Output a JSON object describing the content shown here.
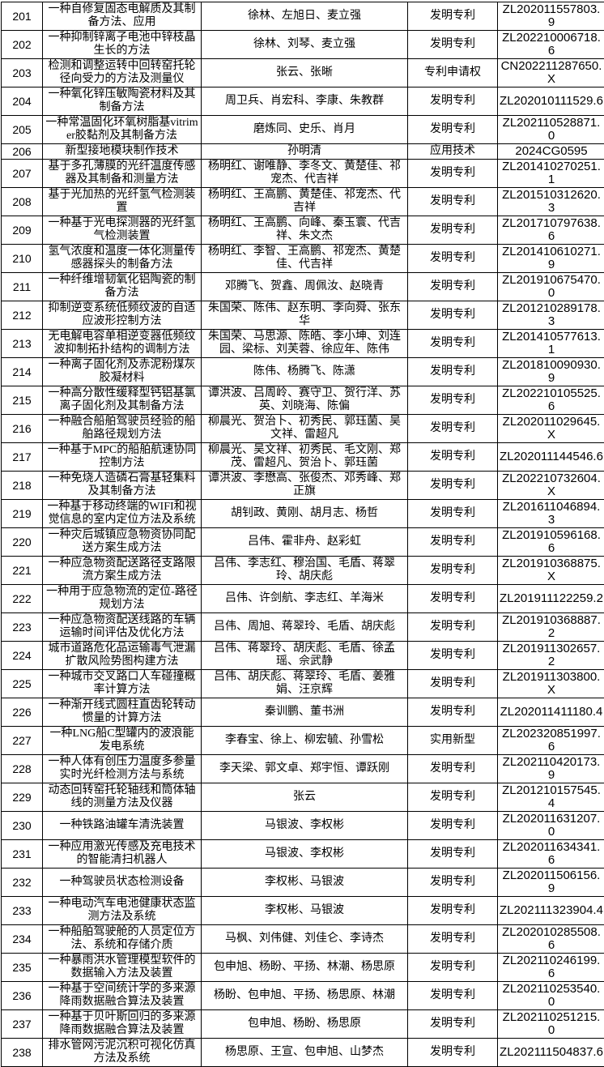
{
  "table": {
    "rows": [
      {
        "no": "201",
        "title": "一种自修复固态电解质及其制备方法、应用",
        "inventors": "徐林、左旭日、麦立强",
        "type": "发明专利",
        "number": "ZL202011557803.9"
      },
      {
        "no": "202",
        "title": "一种抑制锌离子电池中锌枝晶生长的方法",
        "inventors": "徐林、刘琴、麦立强",
        "type": "发明专利",
        "number": "ZL202210006718.6"
      },
      {
        "no": "203",
        "title": "检测和调整运转中回转窑托轮径向受力的方法及测量仪",
        "inventors": "张云、张晰",
        "type": "专利申请权",
        "number": "CN202211287650.X"
      },
      {
        "no": "204",
        "title": "一种氧化锌压敏陶瓷材料及其制备方法",
        "inventors": "周卫兵、肖宏科、李康、朱教群",
        "type": "发明专利",
        "number": "ZL202010111529.6"
      },
      {
        "no": "205",
        "title": "一种常温固化环氧树脂基vitrimer胶黏剂及其制备方法",
        "inventors": "磨炼同、史乐、肖月",
        "type": "发明专利",
        "number": "ZL202110528871.0"
      },
      {
        "no": "206",
        "title": "新型接地模块制作技术",
        "inventors": "孙明清",
        "type": "应用技术",
        "number": "2024CG0595"
      },
      {
        "no": "207",
        "title": "基于多孔薄膜的光纤温度传感器及其制备和测量方法",
        "inventors": "杨明红、谢唯静、李冬文、黄楚佳、祁宠杰、代吉祥",
        "type": "发明专利",
        "number": "ZL201410270251.1"
      },
      {
        "no": "208",
        "title": "基于光加热的光纤氢气检测装置",
        "inventors": "杨明红、王高鹏、黄楚佳、祁宠杰、代吉祥",
        "type": "发明专利",
        "number": "ZL201510312620.3"
      },
      {
        "no": "209",
        "title": "一种基于光电探测器的光纤氢气检测装置",
        "inventors": "杨明红、王高鹏、向峰、秦玉寰、代吉祥、朱文杰",
        "type": "发明专利",
        "number": "ZL201710797638.6"
      },
      {
        "no": "210",
        "title": "氢气浓度和温度一体化测量传感器探头的制备方法",
        "inventors": "杨明红、李智、王高鹏、祁宠杰、黄楚佳、代吉祥",
        "type": "发明专利",
        "number": "ZL201410610271.9"
      },
      {
        "no": "211",
        "title": "一种纤维增韧氧化铝陶瓷的制备方法",
        "inventors": "邓腾飞、贺鑫、周佩汝、赵晓青",
        "type": "发明专利",
        "number": "ZL201910675470.0"
      },
      {
        "no": "212",
        "title": "抑制逆变系统低频纹波的自适应波形控制方法",
        "inventors": "朱国荣、陈伟、赵东明、李向舜、张东华",
        "type": "发明专利",
        "number": "ZL201210289178.3"
      },
      {
        "no": "213",
        "title": "无电解电容单相逆变器低频纹波抑制拓扑结构的调制方法",
        "inventors": "朱国荣、马思源、陈皓、李小坤、刘连园、梁标、刘芙蓉、徐应年、陈伟",
        "type": "发明专利",
        "number": "ZL201410577613.1"
      },
      {
        "no": "214",
        "title": "一种离子固化剂及赤泥粉煤灰胶凝材料",
        "inventors": "陈伟、杨腾飞、陈潇",
        "type": "发明专利",
        "number": "ZL201810090930.9"
      },
      {
        "no": "215",
        "title": "一种高分散性缓释型钙铝基氯离子固化剂及其制备方法",
        "inventors": "谭洪波、吕周岭、赛守卫、贺行洋、苏英、刘晓海、陈偏",
        "type": "发明专利",
        "number": "ZL202210105525.6"
      },
      {
        "no": "216",
        "title": "一种融合船舶驾驶员经验的船舶路径规划方法",
        "inventors": "柳晨光、贺治卜、初秀民、郭珏菌、吴文祥、雷超凡",
        "type": "发明专利",
        "number": "ZL202011029645.X"
      },
      {
        "no": "217",
        "title": "一种基于MPC的船舶航速协同控制方法",
        "inventors": "柳晨光、吴文祥、初秀民、毛文刚、郑茂、雷超凡、贺治卜、郭珏菌",
        "type": "发明专利",
        "number": "ZL202011144546.6"
      },
      {
        "no": "218",
        "title": "一种免烧人造磷石膏基轻集料及其制备方法",
        "inventors": "谭洪波、李懋高、张俊杰、邓秀峰、郑正旗",
        "type": "发明专利",
        "number": "ZL202210732604.X"
      },
      {
        "no": "219",
        "title": "一种基于移动终端的WIFI和视觉信息的室内定位方法及系统",
        "inventors": "胡钊政、黄刚、胡月志、杨哲",
        "type": "发明专利",
        "number": "ZL201611046894.3"
      },
      {
        "no": "220",
        "title": "一种灾后城镇应急物资协同配送方案生成方法",
        "inventors": "吕伟、霍非舟、赵彩虹",
        "type": "发明专利",
        "number": "ZL201910596168.6"
      },
      {
        "no": "221",
        "title": "一种应急物资配送路径支路限流方案生成方法",
        "inventors": "吕伟、李志红、穆治国、毛盾、蒋翠玲、胡庆彪",
        "type": "发明专利",
        "number": "ZL201910368875.X"
      },
      {
        "no": "222",
        "title": "一种用于应急物流的定位-路径规划方法",
        "inventors": "吕伟、许剑航、李志红、羊海米",
        "type": "发明专利",
        "number": "ZL201911122259.2"
      },
      {
        "no": "223",
        "title": "一种应急物资配送线路的车辆运输时间评估及优化方法",
        "inventors": "吕伟、周旭、蒋翠玲、毛盾、胡庆彪",
        "type": "发明专利",
        "number": "ZL201910368887.2"
      },
      {
        "no": "224",
        "title": "城市道路危化品运输毒气泄漏扩散风险势图构建方法",
        "inventors": "吕伟、蒋翠玲、胡庆彪、毛盾、徐孟瑶、佘武静",
        "type": "发明专利",
        "number": "ZL201911302657.2"
      },
      {
        "no": "225",
        "title": "一种城市交叉路口人车碰撞概率计算方法",
        "inventors": "吕伟、胡庆彪、蒋翠玲、毛盾、姜雅娟、汪京辉",
        "type": "发明专利",
        "number": "ZL201911303800.X"
      },
      {
        "no": "226",
        "title": "一种渐开线式圆柱直齿轮转动惯量的计算方法",
        "inventors": "秦训鹏、董书洲",
        "type": "发明专利",
        "number": "ZL202011411180.4"
      },
      {
        "no": "227",
        "title": "一种LNG船C型罐内的波浪能发电系统",
        "inventors": "李春宝、徐上、柳宏毓、孙雪松",
        "type": "实用新型",
        "number": "ZL202320851997.6"
      },
      {
        "no": "228",
        "title": "一种人体有创压力温度多参量实时光纤检测方法与系统",
        "inventors": "李天梁、郭文卓、郑宇恒、谭跃刚",
        "type": "发明专利",
        "number": "ZL202110420173.9"
      },
      {
        "no": "229",
        "title": "动态回转窑托轮轴线和筒体轴线的测量方法及仪器",
        "inventors": "张云",
        "type": "发明专利",
        "number": "ZL201210157545.4"
      },
      {
        "no": "230",
        "title": "一种铁路油罐车清洗装置",
        "inventors": "马银波、李权彬",
        "type": "发明专利",
        "number": "ZL202011631207.0"
      },
      {
        "no": "231",
        "title": "一种应用激光传感及充电技术的智能清扫机器人",
        "inventors": "马银波、李权彬",
        "type": "发明专利",
        "number": "ZL202011634341.6"
      },
      {
        "no": "232",
        "title": "一种驾驶员状态检测设备",
        "inventors": "李权彬、马银波",
        "type": "发明专利",
        "number": "ZL202011506156.9"
      },
      {
        "no": "233",
        "title": "一种电动汽车电池健康状态监测方法及系统",
        "inventors": "李权彬、马银波",
        "type": "发明专利",
        "number": "ZL202111323904.4"
      },
      {
        "no": "234",
        "title": "一种船舶驾驶舱的人员定位方法、系统和存储介质",
        "inventors": "马枫、刘伟健、刘佳仑、李诗杰",
        "type": "发明专利",
        "number": "ZL202010285508.6"
      },
      {
        "no": "235",
        "title": "一种暴雨洪水管理模型软件的数据输入方法及装置",
        "inventors": "包申旭、杨盼、平扬、林潮、杨思原",
        "type": "发明专利",
        "number": "ZL202110246199.6"
      },
      {
        "no": "236",
        "title": "一种基于空间统计学的多来源降雨数据融合算法及装置",
        "inventors": "杨盼、包申旭、平扬、杨思原、林潮",
        "type": "发明专利",
        "number": "ZL202110253540.0"
      },
      {
        "no": "237",
        "title": "一种基于贝叶斯回归的多来源降雨数据融合算法及装置",
        "inventors": "包申旭、杨盼、杨思原",
        "type": "发明专利",
        "number": "ZL202110251215.0"
      },
      {
        "no": "238",
        "title": "排水管网污泥沉积可视化仿真方法及系统",
        "inventors": "杨思原、王宣、包申旭、山梦杰",
        "type": "发明专利",
        "number": "ZL202111504837.6"
      }
    ]
  }
}
